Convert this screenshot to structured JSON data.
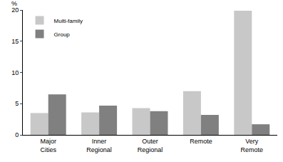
{
  "chart_data": {
    "type": "bar",
    "y_label": "%",
    "categories": [
      "Major Cities",
      "Inner Regional",
      "Outer Regional",
      "Remote",
      "Very Remote"
    ],
    "series": [
      {
        "name": "Multi-family",
        "color": "#c8c8c8",
        "values": [
          3.5,
          3.6,
          4.3,
          7.0,
          19.9
        ]
      },
      {
        "name": "Group",
        "color": "#808080",
        "values": [
          6.5,
          4.7,
          3.8,
          3.2,
          1.7
        ]
      }
    ],
    "ylim": [
      0,
      20
    ],
    "yticks": [
      0,
      5,
      10,
      15,
      20
    ],
    "grid": true,
    "legend": "top left"
  }
}
